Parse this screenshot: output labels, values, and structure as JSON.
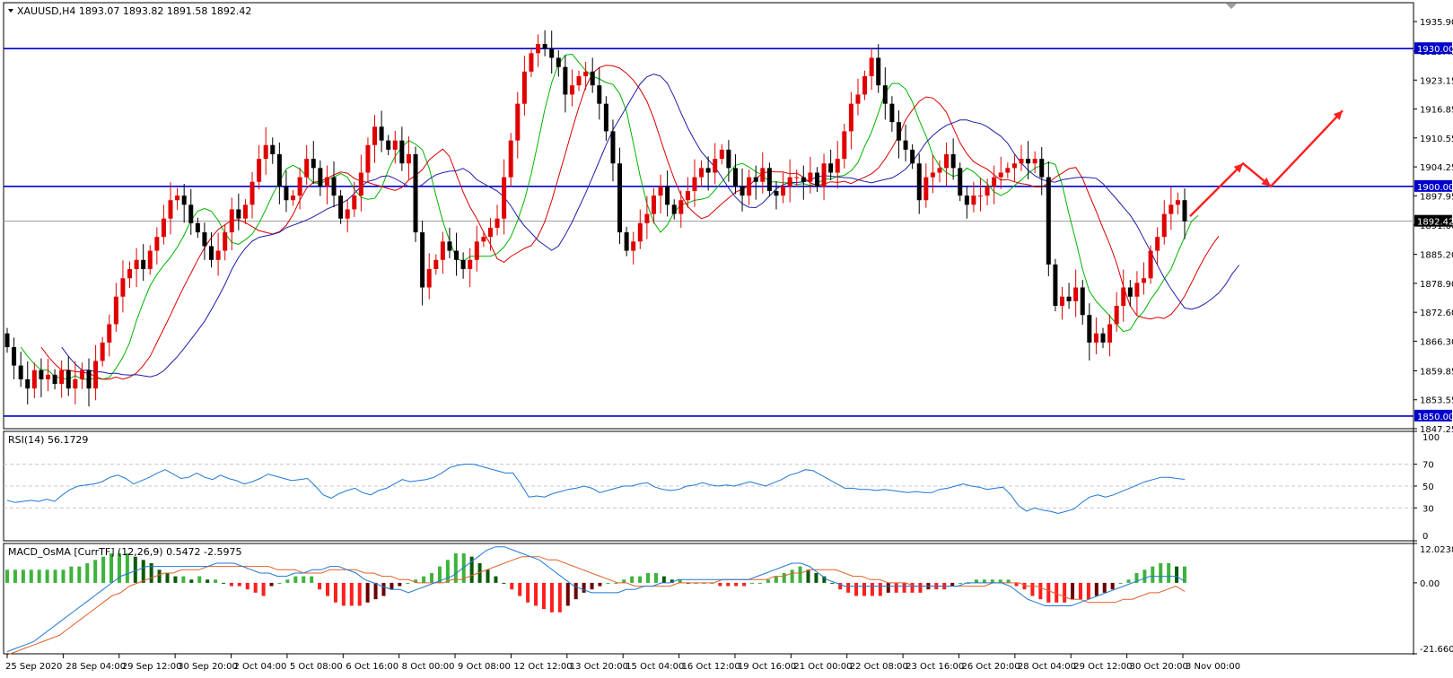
{
  "chart_data": [
    {
      "type": "candlestick",
      "title": "XAUUSD,H4  1893.07 1893.82 1891.58 1892.42",
      "symbol": "XAUUSD",
      "timeframe": "H4",
      "ohlc_last": {
        "open": 1893.07,
        "high": 1893.82,
        "low": 1891.58,
        "close": 1892.42
      },
      "ylim": [
        1847.25,
        1940.0
      ],
      "yticks": [
        "1935.90",
        "1929.45",
        "1923.15",
        "1916.85",
        "1910.55",
        "1904.25",
        "1897.95",
        "1891.60",
        "1885.20",
        "1878.90",
        "1872.60",
        "1866.30",
        "1859.85",
        "1853.55",
        "1847.25"
      ],
      "levels": [
        {
          "value": 1930.0,
          "label": "1930.00",
          "color": "#0000cc"
        },
        {
          "value": 1900.0,
          "label": "1900.00",
          "color": "#0000cc"
        },
        {
          "value": 1850.0,
          "label": "1850.00",
          "color": "#0000cc"
        }
      ],
      "price_line": {
        "value": 1892.42,
        "label": "1892.42"
      },
      "bull_color": "#e00000",
      "bear_color": "#000000",
      "ma_colors": {
        "fast": "#00b400",
        "mid": "#d80000",
        "slow": "#1e1ea8"
      },
      "close_series": [
        1865,
        1861,
        1858,
        1856,
        1860,
        1858,
        1859,
        1857,
        1860,
        1856,
        1858,
        1860,
        1856,
        1862,
        1866,
        1870,
        1876,
        1880,
        1882,
        1884,
        1882,
        1886,
        1889,
        1893,
        1897,
        1898,
        1896,
        1892,
        1890,
        1887,
        1884,
        1886,
        1890,
        1895,
        1893,
        1896,
        1901,
        1906,
        1909,
        1907,
        1900,
        1897,
        1898,
        1902,
        1906,
        1904,
        1900,
        1902,
        1898,
        1893,
        1895,
        1898,
        1903,
        1909,
        1913,
        1910,
        1908,
        1910,
        1905,
        1907,
        1890,
        1878,
        1882,
        1884,
        1888,
        1886,
        1884,
        1882,
        1884,
        1888,
        1889,
        1891,
        1893,
        1902,
        1910,
        1918,
        1925,
        1929,
        1931,
        1930,
        1928,
        1926,
        1920,
        1922,
        1924,
        1925,
        1922,
        1918,
        1912,
        1905,
        1890,
        1886,
        1888,
        1892,
        1894,
        1898,
        1900,
        1896,
        1894,
        1897,
        1899,
        1902,
        1904,
        1903,
        1906,
        1908,
        1904,
        1900,
        1898,
        1902,
        1901,
        1904,
        1899,
        1898,
        1900,
        1902,
        1902,
        1901,
        1903,
        1900,
        1905,
        1903,
        1906,
        1912,
        1918,
        1920,
        1924,
        1928,
        1922,
        1918,
        1914,
        1910,
        1908,
        1905,
        1897,
        1902,
        1903,
        1904,
        1907,
        1904,
        1898,
        1896,
        1898,
        1898,
        1900,
        1902,
        1903,
        1904,
        1905,
        1906,
        1905,
        1906,
        1902,
        1883,
        1874,
        1876,
        1875,
        1878,
        1872,
        1866,
        1868,
        1866,
        1870,
        1874,
        1878,
        1876,
        1879,
        1880,
        1886,
        1889,
        1894,
        1896,
        1897,
        1892.42
      ],
      "annotation_arrows": "red zigzag projection up from last bar through 1905, dip to 1900, then up to 1916",
      "x_tick_labels": [
        "25 Sep 2020",
        "28 Sep 04:00",
        "29 Sep 12:00",
        "30 Sep 20:00",
        "2 Oct 04:00",
        "5 Oct 08:00",
        "6 Oct 16:00",
        "8 Oct 00:00",
        "9 Oct 08:00",
        "12 Oct 12:00",
        "13 Oct 20:00",
        "15 Oct 04:00",
        "16 Oct 12:00",
        "19 Oct 16:00",
        "21 Oct 00:00",
        "22 Oct 08:00",
        "23 Oct 16:00",
        "26 Oct 20:00",
        "28 Oct 04:00",
        "29 Oct 12:00",
        "30 Oct 20:00",
        "3 Nov 00:00"
      ]
    },
    {
      "type": "line",
      "title": "RSI(14) 56.1729",
      "ylim": [
        0,
        100
      ],
      "yticks": [
        "100",
        "70",
        "50",
        "30",
        "0"
      ],
      "levels": [
        70,
        50,
        30
      ],
      "color": "#1e78d2",
      "values": [
        37,
        35,
        36,
        37,
        36,
        38,
        36,
        42,
        47,
        50,
        51,
        52,
        54,
        58,
        60,
        57,
        52,
        55,
        58,
        62,
        65,
        61,
        57,
        58,
        62,
        58,
        56,
        60,
        57,
        55,
        52,
        54,
        57,
        61,
        59,
        57,
        55,
        56,
        57,
        50,
        42,
        39,
        43,
        46,
        48,
        44,
        42,
        46,
        48,
        52,
        56,
        54,
        55,
        56,
        58,
        62,
        67,
        69,
        70,
        70,
        68,
        66,
        64,
        62,
        62,
        52,
        40,
        41,
        40,
        43,
        45,
        47,
        48,
        50,
        48,
        44,
        46,
        48,
        50,
        50,
        52,
        53,
        49,
        47,
        46,
        47,
        50,
        51,
        53,
        51,
        50,
        51,
        50,
        52,
        54,
        52,
        50,
        53,
        56,
        60,
        62,
        65,
        64,
        60,
        56,
        52,
        48,
        48,
        47,
        47,
        46,
        47,
        46,
        45,
        44,
        45,
        44,
        44,
        47,
        48,
        50,
        52,
        50,
        49,
        47,
        48,
        49,
        42,
        32,
        27,
        30,
        28,
        27,
        25,
        27,
        29,
        35,
        40,
        42,
        40,
        42,
        45,
        48,
        51,
        54,
        56,
        58,
        58,
        57,
        56.17
      ]
    },
    {
      "type": "bar+line",
      "title": "MACD_OsMA [CurrTF] (12,26,9) 0.5472 -2.5975",
      "ylim": [
        -21.6607,
        12.0238
      ],
      "yticks": [
        "12.0238",
        "0.00",
        "-21.6607"
      ],
      "hist_colors": {
        "up_pos": "#3cb43c",
        "down_pos": "#0a5a0a",
        "up_neg": "#ff1e1e",
        "down_neg": "#6a0000"
      },
      "macd_color": "#1e78d2",
      "signal_color": "#e0602a",
      "histogram": [
        4,
        4,
        4,
        4,
        4,
        4,
        4,
        4,
        5,
        5,
        6,
        7,
        8,
        9,
        9,
        9,
        8,
        7,
        6,
        4,
        3,
        2,
        2,
        1,
        2,
        1,
        1,
        0,
        -1,
        -1,
        -2,
        -3,
        -4,
        -1,
        0,
        1,
        2,
        2,
        2,
        -2,
        -4,
        -6,
        -7,
        -7,
        -7,
        -6,
        -5,
        -4,
        -2,
        -1,
        0,
        1,
        2,
        3,
        5,
        7,
        9,
        9,
        8,
        6,
        4,
        2,
        0,
        -2,
        -4,
        -6,
        -7,
        -8,
        -9,
        -9,
        -7,
        -5,
        -3,
        -2,
        -1,
        0,
        0,
        1,
        2,
        2,
        3,
        3,
        2,
        1,
        1,
        0,
        0,
        0,
        0,
        -1,
        -1,
        -1,
        -1,
        0,
        0,
        1,
        2,
        3,
        4,
        5,
        4,
        3,
        2,
        0,
        -2,
        -3,
        -4,
        -4,
        -4,
        -4,
        -3,
        -3,
        -3,
        -3,
        -3,
        -2,
        -2,
        -2,
        -1,
        0,
        0,
        1,
        1,
        1,
        1,
        1,
        -1,
        -2,
        -4,
        -5,
        -6,
        -6,
        -6,
        -5,
        -5,
        -5,
        -4,
        -3,
        -2,
        0,
        1,
        3,
        4,
        5,
        6,
        6,
        5,
        5
      ],
      "macd": [
        -21,
        -20,
        -19,
        -18,
        -16,
        -14,
        -12,
        -10,
        -8,
        -6,
        -4,
        -2,
        0,
        2,
        3,
        4,
        5,
        5,
        5,
        5,
        5,
        5,
        5,
        5,
        6,
        6,
        6,
        5,
        4,
        3,
        3,
        2,
        2,
        3,
        3,
        4,
        4,
        5,
        5,
        4,
        3,
        1,
        0,
        -1,
        -2,
        -2,
        -3,
        -2,
        -1,
        0,
        1,
        2,
        4,
        6,
        8,
        10,
        11,
        11,
        10,
        9,
        8,
        7,
        5,
        3,
        1,
        -1,
        -2,
        -3,
        -3,
        -3,
        -3,
        -2,
        -2,
        -1,
        -1,
        0,
        0,
        1,
        1,
        1,
        1,
        1,
        1,
        1,
        1,
        1,
        2,
        3,
        4,
        5,
        6,
        6,
        5,
        3,
        1,
        0,
        -1,
        -1,
        -1,
        -1,
        -1,
        -1,
        -1,
        -1,
        -1,
        -1,
        -1,
        -1,
        -1,
        -1,
        0,
        0,
        0,
        0,
        0,
        -1,
        -3,
        -5,
        -6,
        -7,
        -7,
        -7,
        -7,
        -6,
        -5,
        -4,
        -3,
        -2,
        -1,
        0,
        1,
        2,
        2,
        2,
        2,
        0.55
      ],
      "signal": [
        -22,
        -21,
        -20,
        -19,
        -18,
        -17,
        -16,
        -14,
        -12,
        -10,
        -8,
        -6,
        -4,
        -3,
        -1,
        0,
        1,
        2,
        3,
        3,
        4,
        4,
        4,
        5,
        5,
        5,
        5,
        5,
        5,
        5,
        5,
        4,
        4,
        4,
        3,
        3,
        3,
        4,
        4,
        4,
        4,
        3,
        3,
        2,
        2,
        1,
        1,
        0,
        0,
        0,
        0,
        1,
        1,
        2,
        3,
        4,
        5,
        6,
        7,
        8,
        8,
        8,
        7,
        7,
        6,
        5,
        4,
        3,
        2,
        1,
        0,
        0,
        -1,
        -1,
        -1,
        -1,
        -1,
        0,
        0,
        0,
        0,
        0,
        1,
        1,
        1,
        1,
        1,
        1,
        2,
        2,
        3,
        3,
        4,
        4,
        4,
        4,
        3,
        2,
        2,
        1,
        1,
        0,
        0,
        0,
        -1,
        -1,
        -1,
        -1,
        -1,
        -1,
        -1,
        -1,
        -1,
        0,
        0,
        0,
        0,
        -1,
        -1,
        -2,
        -3,
        -4,
        -5,
        -5,
        -6,
        -6,
        -6,
        -6,
        -5,
        -5,
        -4,
        -3,
        -3,
        -2,
        -1,
        -2.6
      ]
    }
  ]
}
